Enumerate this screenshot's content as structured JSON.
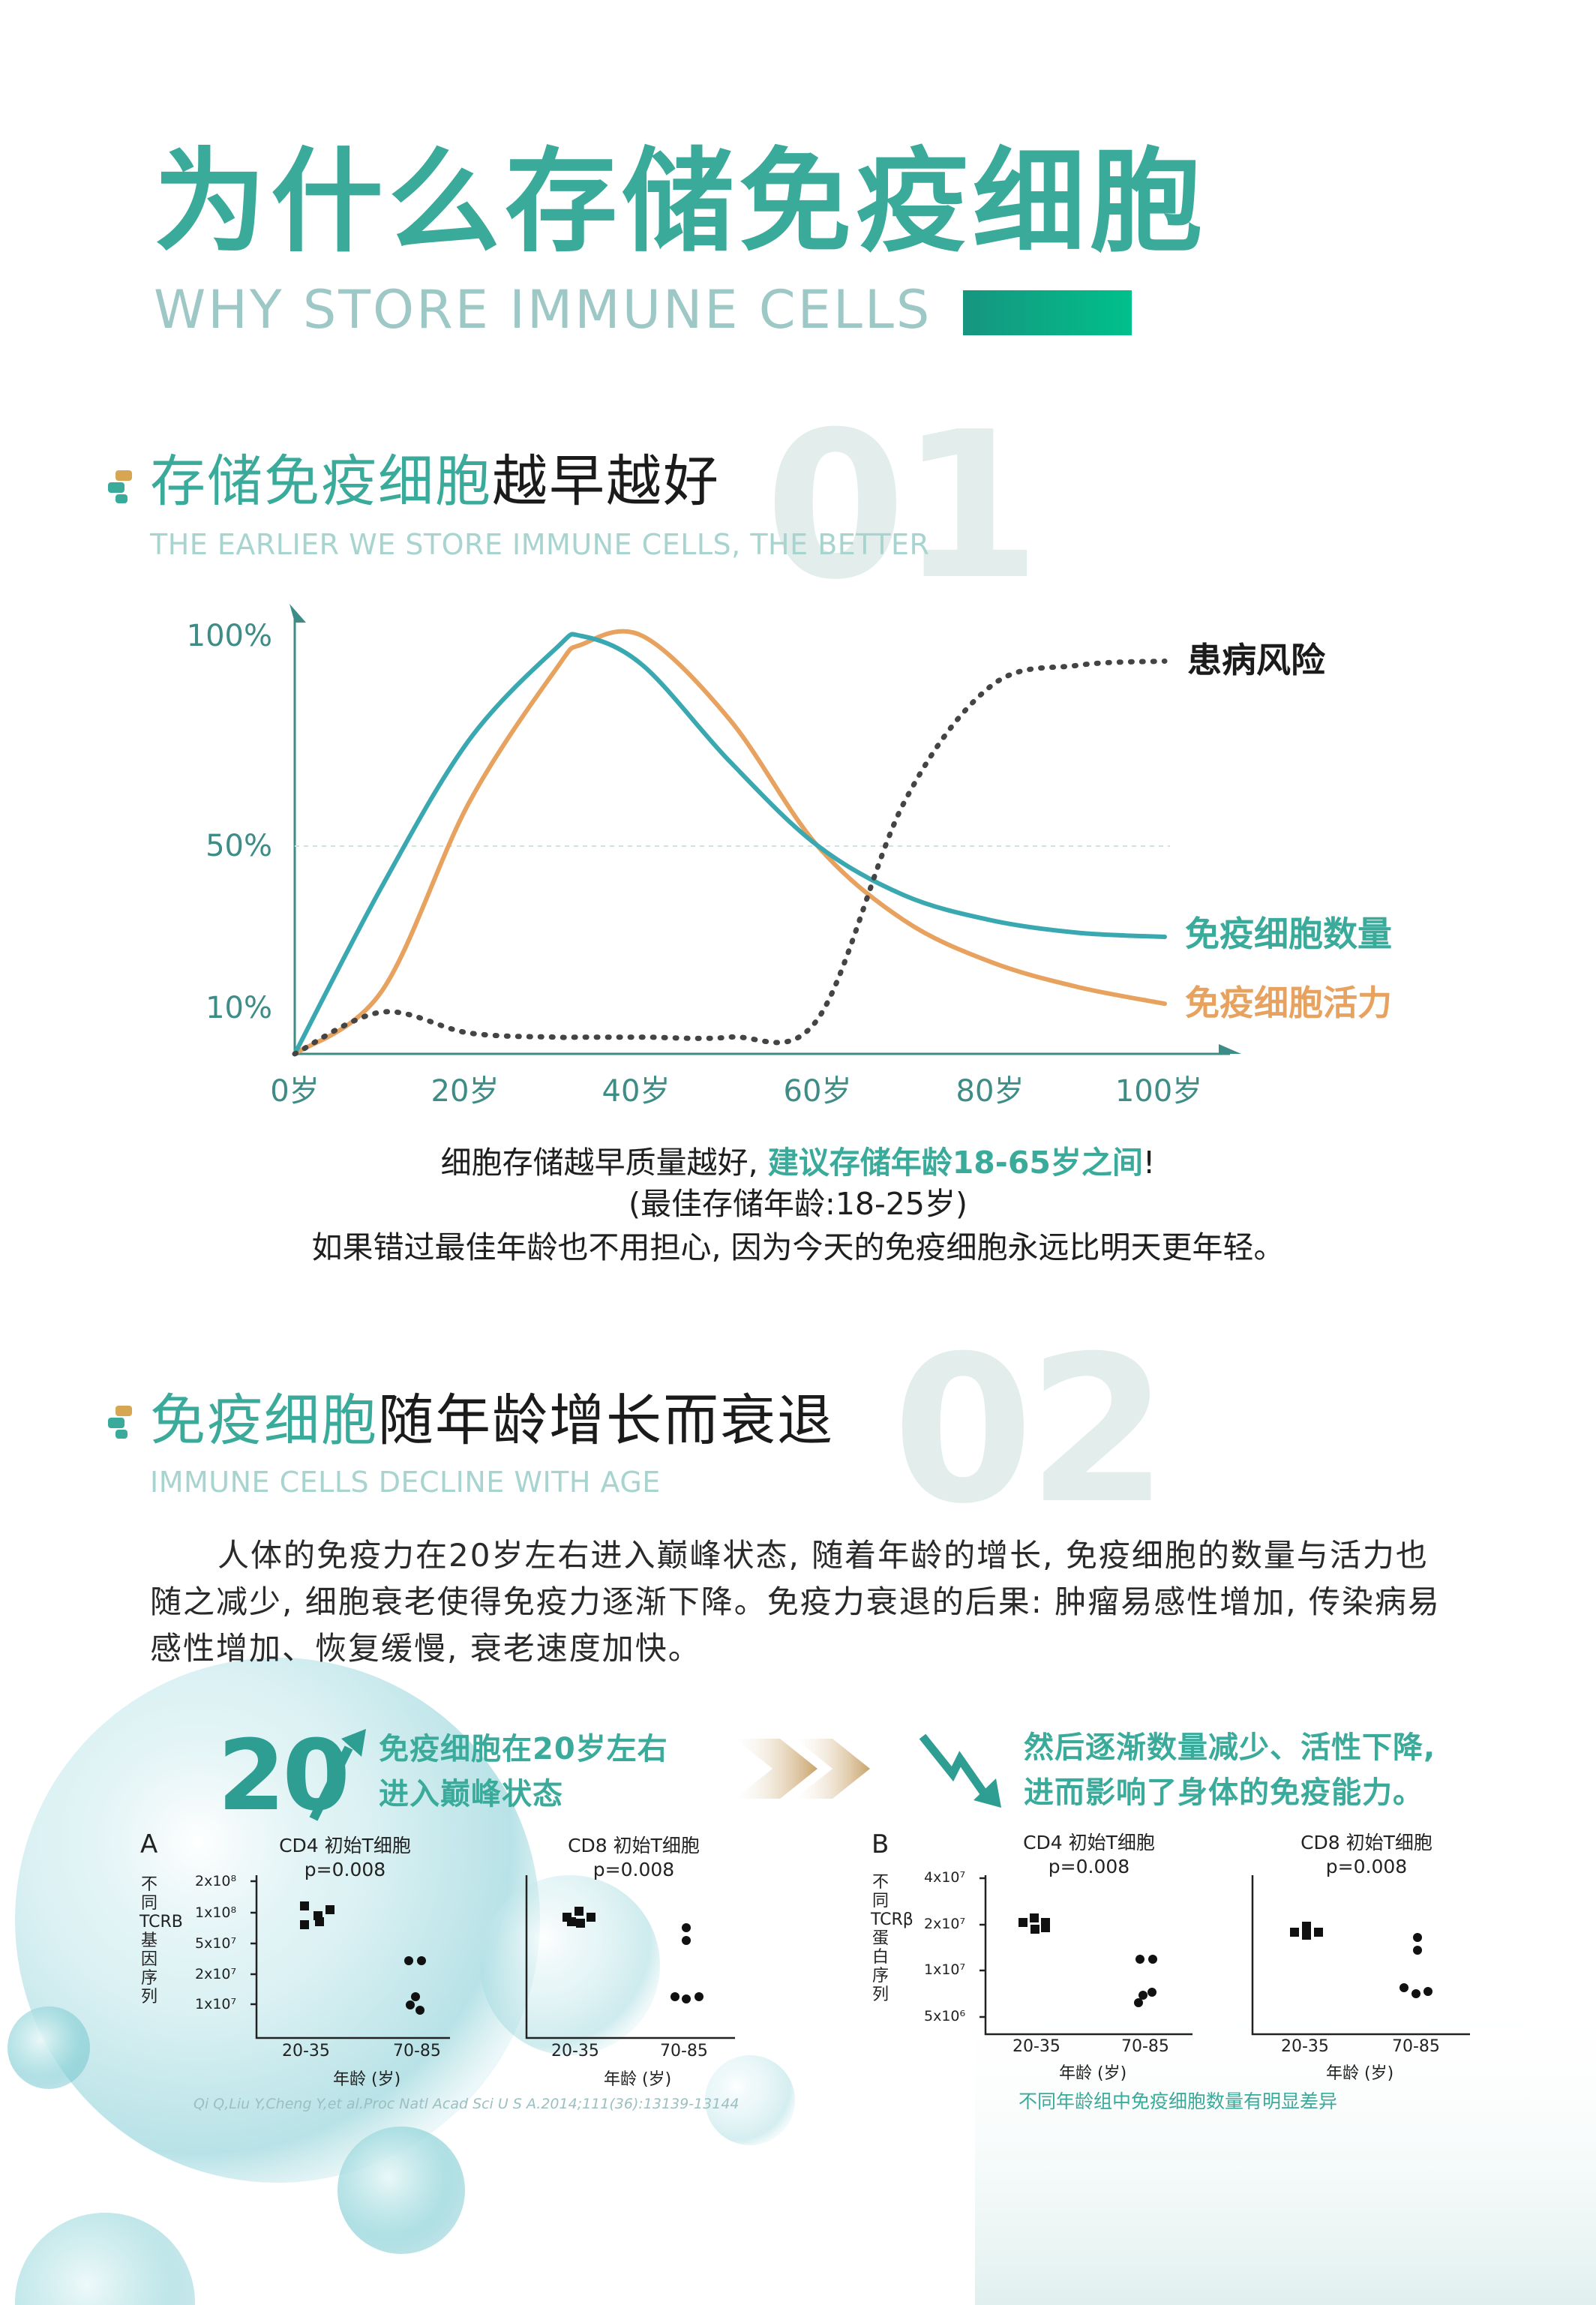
{
  "header": {
    "title": "为什么存储免疫细胞",
    "subtitle": "WHY STORE IMMUNE CELLS"
  },
  "section1": {
    "number": "01",
    "title_highlight": "存储免疫细胞",
    "title_rest": "越早越好",
    "subtitle": "THE EARLIER WE STORE IMMUNE CELLS, THE BETTER"
  },
  "chart_data": {
    "type": "line",
    "x_ticks": [
      "0岁",
      "20岁",
      "40岁",
      "60岁",
      "80岁",
      "100岁"
    ],
    "y_ticks": [
      "100%",
      "50%",
      "10%"
    ],
    "x": [
      0,
      10,
      20,
      30,
      33,
      40,
      50,
      60,
      70,
      80,
      90,
      100
    ],
    "series": [
      {
        "name": "免疫细胞数量",
        "color": "#3aa8b1",
        "style": "solid",
        "values": [
          0,
          40,
          75,
          97,
          100,
          93,
          70,
          50,
          38,
          32,
          29,
          28
        ]
      },
      {
        "name": "免疫细胞活力",
        "color": "#e8a25f",
        "style": "solid",
        "values": [
          0,
          15,
          60,
          92,
          98,
          100,
          80,
          50,
          32,
          22,
          16,
          12
        ]
      },
      {
        "name": "患病风险",
        "color": "#444444",
        "style": "dotted",
        "values": [
          0,
          10,
          5,
          4,
          4,
          4,
          4,
          8,
          60,
          88,
          93,
          94
        ]
      }
    ],
    "xlim": [
      0,
      100
    ],
    "ylim": [
      0,
      100
    ],
    "grid": "50% dashed line"
  },
  "section1_caption": {
    "line1_a": "细胞存储越早质量越好,",
    "line1_b": "建议存储年龄18-65岁之间",
    "line1_c": "!",
    "line2": "(最佳存储年龄:18-25岁)",
    "line3": "如果错过最佳年龄也不用担心, 因为今天的免疫细胞永远比明天更年轻。"
  },
  "section2": {
    "number": "02",
    "title_highlight": "免疫细胞",
    "title_rest": "随年龄增长而衰退",
    "subtitle": "IMMUNE CELLS DECLINE WITH AGE",
    "paragraph": "人体的免疫力在20岁左右进入巅峰状态, 随着年龄的增长, 免疫细胞的数量与活力也随之减少, 细胞衰老使得免疫力逐渐下降。免疫力衰退的后果: 肿瘤易感性增加, 传染病易感性增加、恢复缓慢, 衰老速度加快。"
  },
  "callouts": {
    "peak_number": "20",
    "peak_line1": "免疫细胞在20岁左右",
    "peak_line2": "进入巅峰状态",
    "decline_line1": "然后逐渐数量减少、活性下降,",
    "decline_line2": "进而影响了身体的免疫能力。"
  },
  "panelA": {
    "letter": "A",
    "ylabel": "不同TCRB基因序列",
    "yticks_main": [
      "2x10⁸",
      "1x10⁸",
      "5x10⁷",
      "2x10⁷",
      "1x10⁷"
    ],
    "xgroups": [
      "20-35",
      "70-85"
    ],
    "xlabel": "年龄 (岁)",
    "plots": [
      {
        "title": "CD4 初始T细胞",
        "p": "p=0.008"
      },
      {
        "title": "CD8 初始T细胞",
        "p": "p=0.008"
      }
    ],
    "reference": "Qi Q,Liu Y,Cheng Y,et al.Proc Natl Acad Sci U S A.2014;111(36):13139-13144"
  },
  "panelB": {
    "letter": "B",
    "ylabel": "不同TCRβ蛋白序列",
    "yticks_main": [
      "4x10⁷",
      "2x10⁷",
      "1x10⁷",
      "5x10⁶"
    ],
    "xgroups": [
      "20-35",
      "70-85"
    ],
    "xlabel": "年龄 (岁)",
    "plots": [
      {
        "title": "CD4 初始T细胞",
        "p": "p=0.008"
      },
      {
        "title": "CD8 初始T细胞",
        "p": "p=0.008"
      }
    ],
    "note": "不同年龄组中免疫细胞数量有明显差异"
  }
}
